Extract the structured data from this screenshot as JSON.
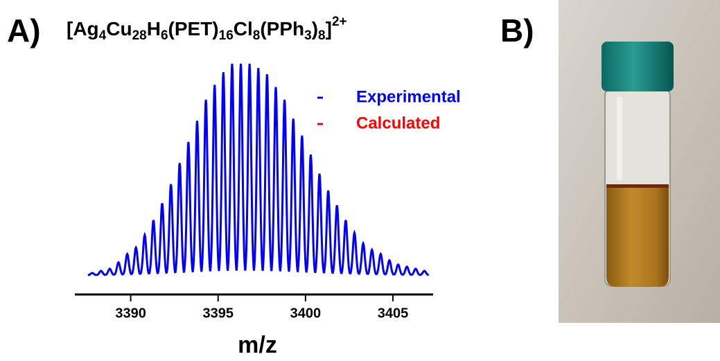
{
  "panel_a": "A)",
  "panel_b": "B)",
  "chart_data": {
    "type": "spectrum",
    "title": [
      {
        "text": "[Ag"
      },
      {
        "text": "4",
        "sub": true
      },
      {
        "text": "Cu"
      },
      {
        "text": "28",
        "sub": true
      },
      {
        "text": "H"
      },
      {
        "text": "6",
        "sub": true
      },
      {
        "text": "(PET)"
      },
      {
        "text": "16",
        "sub": true
      },
      {
        "text": "Cl"
      },
      {
        "text": "8",
        "sub": true
      },
      {
        "text": "(PPh"
      },
      {
        "text": "3",
        "sub": true
      },
      {
        "text": ")"
      },
      {
        "text": "8",
        "sub": true
      },
      {
        "text": "]"
      },
      {
        "text": "2+",
        "sup": true
      }
    ],
    "x_label": "m/z",
    "x": [
      3387.8,
      3388.3,
      3388.8,
      3389.3,
      3389.8,
      3390.3,
      3390.8,
      3391.3,
      3391.8,
      3392.3,
      3392.8,
      3393.3,
      3393.8,
      3394.3,
      3394.8,
      3395.3,
      3395.8,
      3396.3,
      3396.8,
      3397.3,
      3397.8,
      3398.3,
      3398.8,
      3399.3,
      3399.8,
      3400.3,
      3400.8,
      3401.3,
      3401.8,
      3402.3,
      3402.8,
      3403.3,
      3403.8,
      3404.3,
      3404.8,
      3405.3,
      3405.8,
      3406.3,
      3406.8
    ],
    "series": [
      {
        "name": "Calculated",
        "color": "#ff0000",
        "values": [
          1,
          2,
          3,
          6,
          10,
          13,
          19,
          26,
          34,
          43,
          53,
          63,
          73,
          83,
          90,
          96,
          100,
          100,
          100,
          98,
          95,
          89,
          83,
          74,
          66,
          57,
          48,
          40,
          33,
          26,
          20,
          15,
          12,
          10,
          7,
          5,
          4,
          3,
          2
        ]
      },
      {
        "name": "Experimental",
        "color": "#0000ff",
        "values": [
          1,
          2,
          3,
          6,
          10,
          13,
          19,
          26,
          34,
          43,
          53,
          63,
          73,
          83,
          90,
          96,
          100,
          100,
          100,
          98,
          95,
          89,
          83,
          74,
          66,
          57,
          48,
          40,
          33,
          26,
          20,
          15,
          12,
          10,
          7,
          5,
          4,
          3,
          2
        ]
      }
    ],
    "xlim": [
      3387.2,
      3407.3
    ],
    "xticks": [
      3390,
      3395,
      3400,
      3405
    ],
    "ylim": [
      0,
      100
    ]
  }
}
